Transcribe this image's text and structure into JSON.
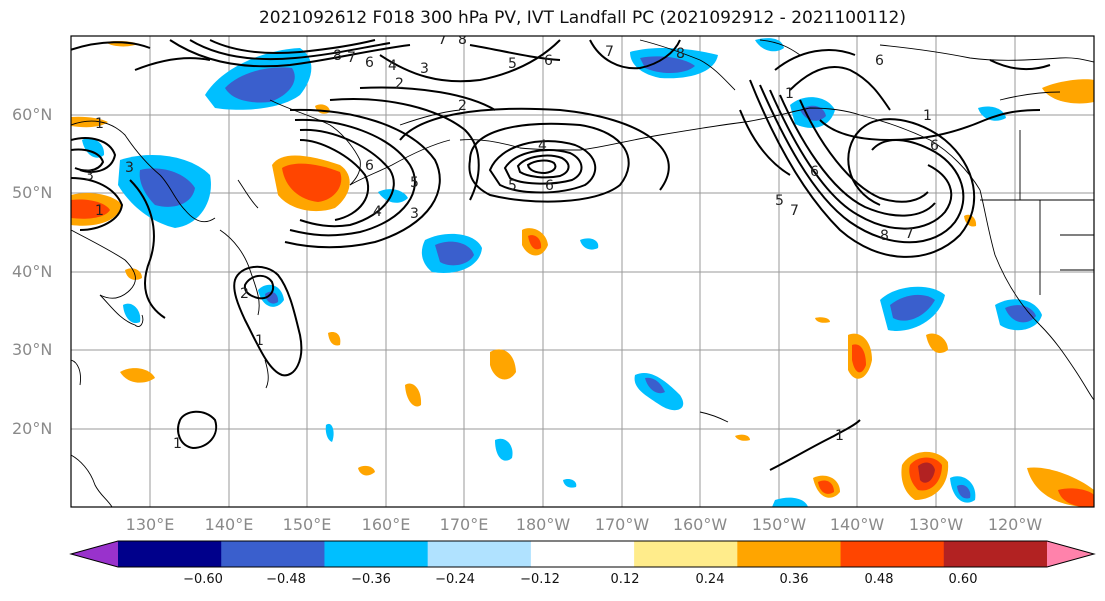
{
  "title": "2021092612 F018 300 hPa PV, IVT Landfall PC (2021092912 - 2021100112)",
  "lat_labels": [
    "60°N",
    "50°N",
    "40°N",
    "30°N",
    "20°N"
  ],
  "lon_labels": [
    "130°E",
    "140°E",
    "150°E",
    "160°E",
    "170°E",
    "180°W",
    "170°W",
    "160°W",
    "150°W",
    "140°W",
    "130°W",
    "120°W"
  ],
  "colorbar": {
    "colors": [
      "#9932CC",
      "#00008B",
      "#3A5FCD",
      "#00BFFF",
      "#B0E2FF",
      "#FFFFFF",
      "#FFEC8B",
      "#FFA500",
      "#FF4500",
      "#B22222",
      "#FF82AB"
    ],
    "ticks": [
      "−0.60",
      "−0.48",
      "−0.36",
      "−0.24",
      "−0.12",
      "0.12",
      "0.24",
      "0.36",
      "0.48",
      "0.60"
    ]
  },
  "contour_labels": [
    "8",
    "7",
    "6",
    "4",
    "3",
    "2",
    "2",
    "4",
    "5",
    "6",
    "5",
    "6",
    "4",
    "3",
    "5",
    "6",
    "7",
    "6",
    "1",
    "6",
    "7",
    "8",
    "1",
    "1",
    "1",
    "3",
    "2",
    "3",
    "1",
    "1",
    "1",
    "8",
    "7",
    "6",
    "5",
    "8",
    "7"
  ]
}
